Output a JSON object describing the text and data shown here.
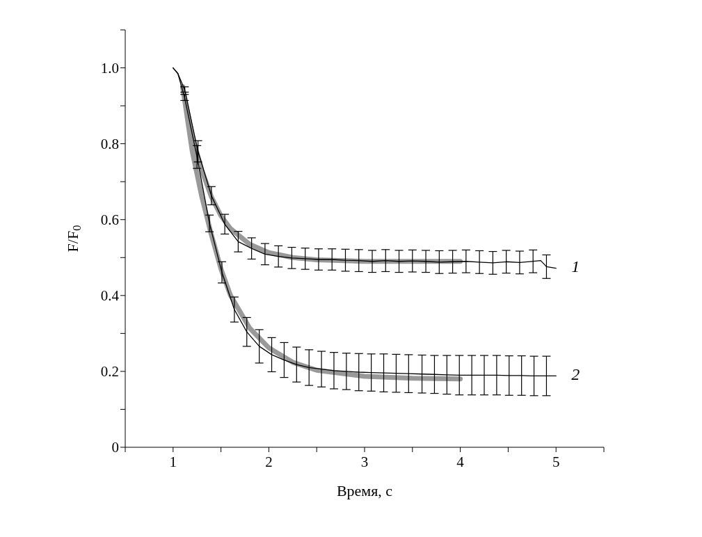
{
  "chart_data": {
    "type": "line",
    "xlabel": "Время, с",
    "ylabel": "F/F$_{0}$",
    "xlim": [
      0.5,
      5.5
    ],
    "ylim": [
      0,
      1.1
    ],
    "xticks": [
      {
        "value": 0.5,
        "label": null
      },
      1,
      {
        "value": 1.5,
        "label": null
      },
      2,
      {
        "value": 2.5,
        "label": null
      },
      3,
      {
        "value": 3.5,
        "label": null
      },
      4,
      {
        "value": 4.5,
        "label": null
      },
      5,
      {
        "value": 5.5,
        "label": null
      }
    ],
    "yticks": [
      0,
      {
        "value": 0.1,
        "label": null
      },
      0.2,
      {
        "value": 0.3,
        "label": null
      },
      0.4,
      {
        "value": 0.5,
        "label": null
      },
      0.6,
      {
        "value": 0.7,
        "label": null
      },
      0.8,
      {
        "value": 0.9,
        "label": null
      },
      {
        "value": 1,
        "label": "1.0"
      },
      {
        "value": 1.1,
        "label": null
      }
    ],
    "marker": "none",
    "line_style": "solid",
    "series": [
      {
        "color": "#999999",
        "x": [
          1.1,
          1.2,
          1.3,
          1.4,
          1.5,
          1.6,
          1.8,
          2.0,
          2.25,
          2.5,
          3.0,
          3.5,
          4.0
        ],
        "values": [
          0.95,
          0.82,
          0.73,
          0.66,
          0.61,
          0.576,
          0.535,
          0.513,
          0.5,
          0.494,
          0.49,
          0.49,
          0.49
        ]
      },
      {
        "color": "#999999",
        "x": [
          1.1,
          1.2,
          1.3,
          1.4,
          1.5,
          1.6,
          1.8,
          2.0,
          2.25,
          2.5,
          3.0,
          3.5,
          4.0
        ],
        "values": [
          0.95,
          0.78,
          0.66,
          0.56,
          0.47,
          0.4,
          0.314,
          0.262,
          0.224,
          0.203,
          0.187,
          0.182,
          0.18
        ]
      },
      {
        "name": "1",
        "color": "#000000",
        "x": [
          1.0,
          1.05,
          1.12,
          1.26,
          1.4,
          1.54,
          1.68,
          1.82,
          1.96,
          2.1,
          2.24,
          2.38,
          2.52,
          2.66,
          2.8,
          2.94,
          3.08,
          3.22,
          3.36,
          3.5,
          3.64,
          3.78,
          3.92,
          4.06,
          4.2,
          4.34,
          4.48,
          4.62,
          4.76,
          4.84,
          4.9,
          5.0
        ],
        "values": [
          1.0,
          0.985,
          0.943,
          0.78,
          0.663,
          0.588,
          0.542,
          0.524,
          0.509,
          0.503,
          0.499,
          0.497,
          0.495,
          0.495,
          0.493,
          0.492,
          0.49,
          0.492,
          0.49,
          0.491,
          0.49,
          0.488,
          0.489,
          0.49,
          0.488,
          0.486,
          0.489,
          0.487,
          0.49,
          0.492,
          0.476,
          0.472
        ],
        "errors": [
          null,
          null,
          0.007,
          0.028,
          0.024,
          0.026,
          0.027,
          0.028,
          0.028,
          0.028,
          0.028,
          0.028,
          0.028,
          0.028,
          0.029,
          0.029,
          0.029,
          0.029,
          0.029,
          0.029,
          0.029,
          0.03,
          0.03,
          0.03,
          0.03,
          0.03,
          0.03,
          0.03,
          0.03,
          null,
          0.031,
          null
        ]
      },
      {
        "name": "2",
        "color": "#000000",
        "x": [
          1.0,
          1.05,
          1.12,
          1.25,
          1.38,
          1.51,
          1.64,
          1.77,
          1.9,
          2.03,
          2.16,
          2.29,
          2.42,
          2.55,
          2.68,
          2.81,
          2.94,
          3.07,
          3.2,
          3.33,
          3.46,
          3.6,
          3.73,
          3.86,
          3.99,
          4.12,
          4.25,
          4.38,
          4.51,
          4.64,
          4.77,
          4.9,
          5.0
        ],
        "values": [
          1.0,
          0.985,
          0.922,
          0.765,
          0.59,
          0.461,
          0.363,
          0.304,
          0.266,
          0.244,
          0.23,
          0.218,
          0.21,
          0.206,
          0.202,
          0.2,
          0.198,
          0.197,
          0.196,
          0.195,
          0.194,
          0.193,
          0.192,
          0.191,
          0.19,
          0.19,
          0.19,
          0.19,
          0.189,
          0.189,
          0.188,
          0.188,
          0.188
        ],
        "errors": [
          null,
          null,
          0.008,
          0.03,
          0.022,
          0.028,
          0.033,
          0.038,
          0.044,
          0.045,
          0.046,
          0.046,
          0.047,
          0.047,
          0.048,
          0.048,
          0.049,
          0.049,
          0.05,
          0.05,
          0.05,
          0.05,
          0.05,
          0.051,
          0.052,
          0.052,
          0.052,
          0.052,
          0.052,
          0.052,
          0.052,
          0.052,
          null
        ]
      }
    ]
  }
}
